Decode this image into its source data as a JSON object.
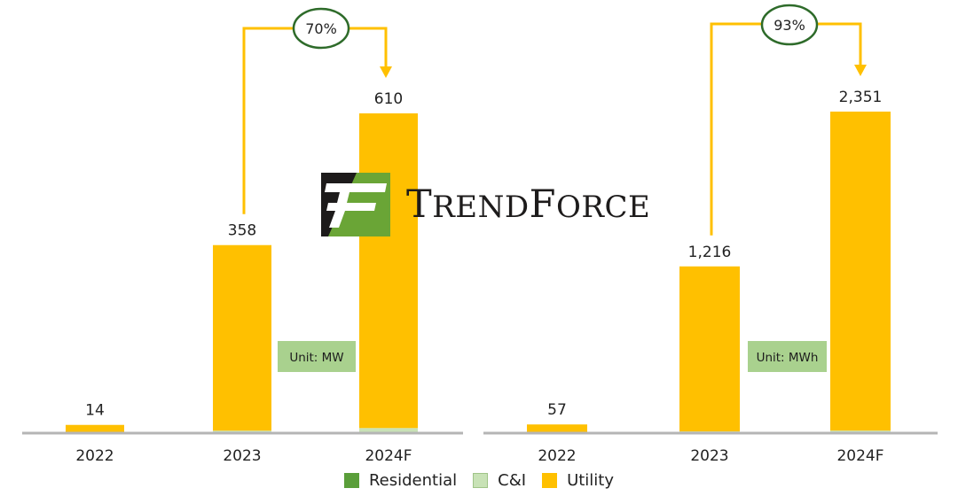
{
  "colors": {
    "residential": "#5a9e3a",
    "ci": "#c8e2b6",
    "utility": "#ffc000",
    "axis": "#b5b5b5",
    "arrow": "#ffc000",
    "ellipse": "#2e6b2a",
    "unit_box": "#a9d18e"
  },
  "logo": {
    "brand": "TrendForce",
    "first": "T",
    "rest1": "REND",
    "second": "F",
    "rest2": "ORCE"
  },
  "chart_data": [
    {
      "type": "bar",
      "stacked": true,
      "categories": [
        "2022",
        "2023",
        "2024F"
      ],
      "series": [
        {
          "name": "Residential",
          "values": [
            0,
            0,
            0
          ]
        },
        {
          "name": "C&I",
          "values": [
            0,
            3,
            8
          ]
        },
        {
          "name": "Utility",
          "values": [
            14,
            355,
            602
          ]
        }
      ],
      "totals": [
        14,
        358,
        610
      ],
      "total_labels": [
        "14",
        "358",
        "610"
      ],
      "ylim": [
        0,
        650
      ],
      "unit": "Unit: MW",
      "growth": {
        "label": "70%",
        "from": "2023",
        "to": "2024F"
      }
    },
    {
      "type": "bar",
      "stacked": true,
      "categories": [
        "2022",
        "2023",
        "2024F"
      ],
      "series": [
        {
          "name": "Residential",
          "values": [
            0,
            0,
            0
          ]
        },
        {
          "name": "C&I",
          "values": [
            0,
            6,
            12
          ]
        },
        {
          "name": "Utility",
          "values": [
            57,
            1210,
            2339
          ]
        }
      ],
      "totals": [
        57,
        1216,
        2351
      ],
      "total_labels": [
        "57",
        "1,216",
        "2,351"
      ],
      "ylim": [
        0,
        2500
      ],
      "unit": "Unit: MWh",
      "growth": {
        "label": "93%",
        "from": "2023",
        "to": "2024F"
      }
    }
  ],
  "legend": [
    {
      "label": "Residential",
      "color": "#5a9e3a"
    },
    {
      "label": "C&I",
      "color": "#c8e2b6"
    },
    {
      "label": "Utility",
      "color": "#ffc000"
    }
  ]
}
